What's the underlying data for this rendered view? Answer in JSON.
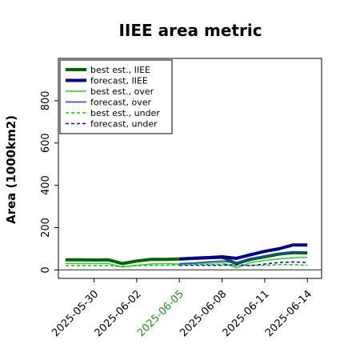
{
  "chart_data": {
    "type": "line",
    "title": "IIEE area metric",
    "ylabel": "Area (1000km2)",
    "xlabel": "",
    "ylim": [
      -40,
      1000
    ],
    "yticks": [
      0,
      200,
      400,
      600,
      800
    ],
    "x": [
      "2025-05-28",
      "2025-05-29",
      "2025-05-30",
      "2025-05-31",
      "2025-06-01",
      "2025-06-02",
      "2025-06-03",
      "2025-06-04",
      "2025-06-05",
      "2025-06-06",
      "2025-06-07",
      "2025-06-08",
      "2025-06-09",
      "2025-06-10",
      "2025-06-11",
      "2025-06-12",
      "2025-06-13",
      "2025-06-14"
    ],
    "xticks": [
      {
        "label": "2025-05-30",
        "color": "#000000"
      },
      {
        "label": "2025-06-02",
        "color": "#000000"
      },
      {
        "label": "2025-06-05",
        "color": "#228B22"
      },
      {
        "label": "2025-06-08",
        "color": "#000000"
      },
      {
        "label": "2025-06-11",
        "color": "#000000"
      },
      {
        "label": "2025-06-14",
        "color": "#000000"
      }
    ],
    "series": [
      {
        "name": "best est., IIEE",
        "color": "#006400",
        "dash": "solid",
        "width": 4,
        "values": [
          48,
          48,
          47,
          48,
          30,
          42,
          50,
          50,
          52,
          55,
          58,
          60,
          30,
          50,
          62,
          75,
          82,
          80
        ]
      },
      {
        "name": "forecast, IIEE",
        "color": "#00008B",
        "dash": "solid",
        "width": 4,
        "values": [
          null,
          null,
          null,
          null,
          null,
          null,
          null,
          null,
          52,
          55,
          58,
          62,
          55,
          72,
          88,
          100,
          118,
          118
        ]
      },
      {
        "name": "best est., over",
        "color": "#32CD32",
        "dash": "solid",
        "width": 1.5,
        "values": [
          30,
          30,
          30,
          30,
          14,
          22,
          28,
          30,
          28,
          30,
          32,
          35,
          10,
          35,
          45,
          52,
          58,
          60
        ]
      },
      {
        "name": "forecast, over",
        "color": "#1F3FD9",
        "dash": "solid",
        "width": 1.5,
        "values": [
          null,
          null,
          null,
          null,
          null,
          null,
          null,
          null,
          30,
          33,
          38,
          42,
          32,
          55,
          65,
          75,
          85,
          85
        ]
      },
      {
        "name": "best est., under",
        "color": "#00C800",
        "dash": "dashed",
        "width": 1.5,
        "values": [
          20,
          20,
          20,
          20,
          16,
          20,
          22,
          22,
          24,
          25,
          25,
          25,
          20,
          22,
          22,
          25,
          25,
          22
        ]
      },
      {
        "name": "forecast, under",
        "color": "#0000CD",
        "dash": "dashed",
        "width": 1.5,
        "values": [
          null,
          null,
          null,
          null,
          null,
          null,
          null,
          null,
          22,
          22,
          22,
          22,
          25,
          20,
          28,
          35,
          38,
          35
        ]
      }
    ],
    "grid": false,
    "legend_position": "top-left"
  }
}
